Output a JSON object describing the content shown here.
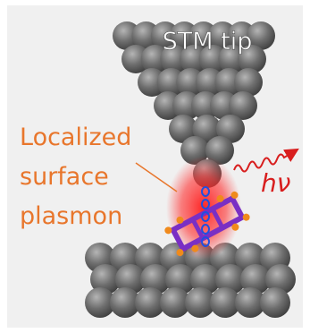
{
  "labels": {
    "tip": "STM tip",
    "plasmon": [
      "Localized",
      "surface",
      "plasmon"
    ],
    "photon": "hν"
  }
}
